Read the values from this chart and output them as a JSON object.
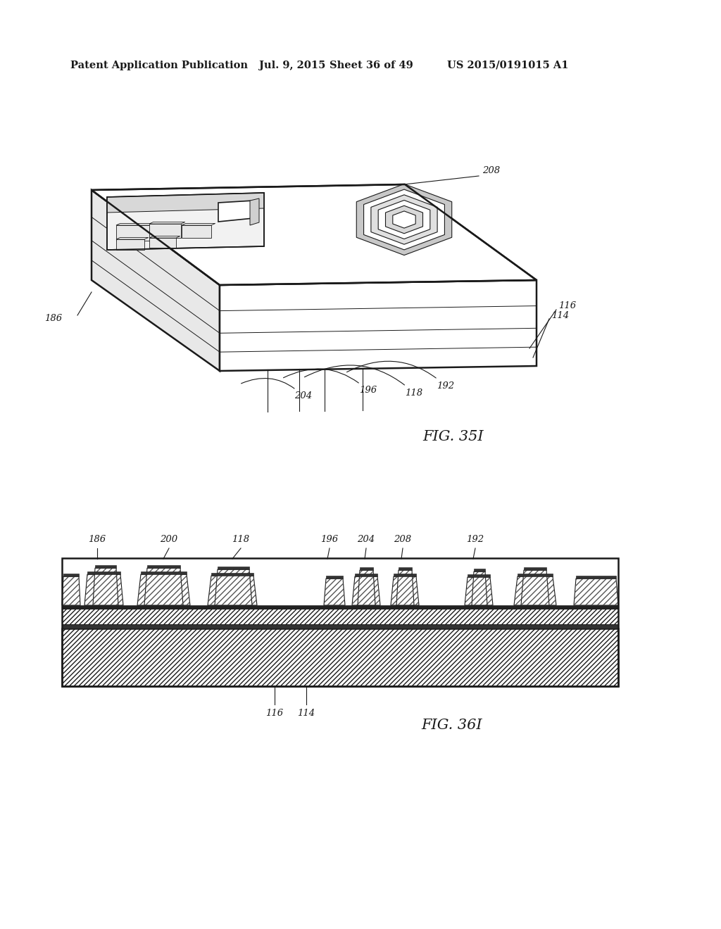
{
  "background_color": "#ffffff",
  "header_text": "Patent Application Publication",
  "header_date": "Jul. 9, 2015",
  "header_sheet": "Sheet 36 of 49",
  "header_patent": "US 2015/0191015 A1",
  "fig1_label": "FIG. 35I",
  "fig2_label": "FIG. 36I",
  "color_main": "#1a1a1a",
  "color_gray_light": "#e0e0e0",
  "color_gray_med": "#aaaaaa",
  "color_gray_dark": "#555555",
  "color_black": "#111111"
}
